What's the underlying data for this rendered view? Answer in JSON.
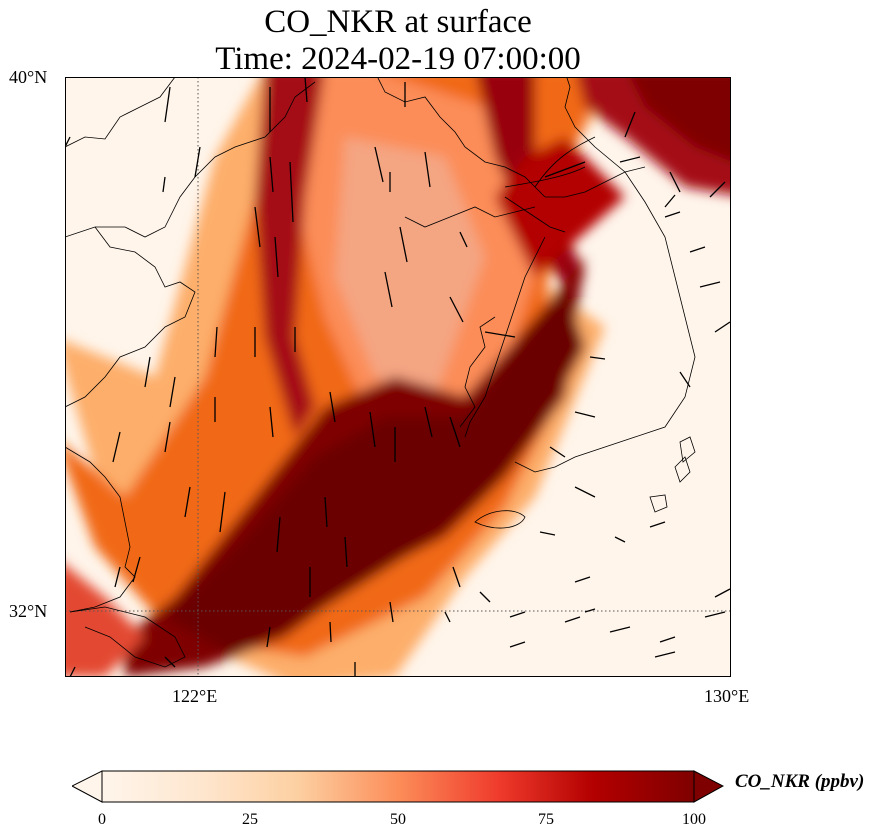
{
  "title": {
    "line1": "CO_NKR at surface",
    "line2": "Time: 2024-02-19 07:00:00"
  },
  "axes": {
    "lat_labels": [
      "40°N",
      "32°N"
    ],
    "lon_labels": [
      "122°E",
      "130°E"
    ],
    "extent": {
      "lon": [
        120,
        130
      ],
      "lat": [
        31,
        40
      ]
    },
    "gridlines": "dotted"
  },
  "colorbar": {
    "label": "CO_NKR (ppbv)",
    "ticks": [
      "0",
      "25",
      "50",
      "75",
      "100"
    ],
    "range": [
      0,
      100
    ],
    "extend": "both",
    "colormap": [
      "#fff5eb",
      "#fdd9b3",
      "#fdab6d",
      "#f7733f",
      "#e03d1f",
      "#b30000",
      "#7f0000"
    ]
  },
  "map": {
    "field": "CO_NKR",
    "level": "surface",
    "units": "ppbv",
    "features": [
      "coastline",
      "wind-vectors"
    ],
    "plume_color": "#7f0000"
  }
}
